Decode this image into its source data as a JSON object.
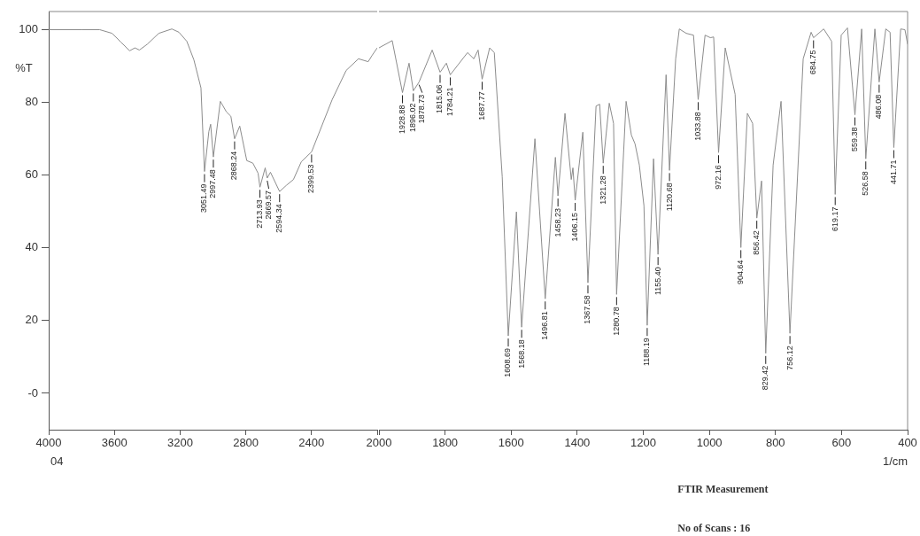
{
  "chart_data": [
    {
      "type": "line",
      "ylabel": "%T",
      "x": [
        4000,
        3800,
        3689,
        3614,
        3561,
        3507,
        3475,
        3448,
        3400,
        3330,
        3250,
        3207,
        3159,
        3116,
        3073,
        3051.49,
        3025,
        3014,
        2997.48,
        2955,
        2918,
        2891,
        2868.24,
        2837,
        2794,
        2757,
        2725,
        2713.93,
        2682,
        2669.57,
        2650,
        2594.34,
        2553,
        2510,
        2462,
        2399.53,
        2274,
        2189,
        2114,
        2055,
        2030,
        2000
      ],
      "series": [
        {
          "color": "#8c8c8c",
          "values": [
            100,
            100,
            100,
            99,
            96.6,
            94.2,
            95,
            94.4,
            96,
            99,
            100.2,
            99.3,
            96.8,
            91.7,
            84,
            61,
            72,
            74,
            65,
            80.3,
            77.4,
            76.2,
            70,
            73.5,
            64,
            63.3,
            60.5,
            56.7,
            62,
            59.2,
            60.8,
            55.5,
            57.2,
            58.8,
            63.7,
            66.4,
            80.8,
            88.8,
            92,
            91.2,
            93,
            95
          ]
        }
      ],
      "xlim": [
        4000,
        2000
      ],
      "xticks": [
        4000,
        3600,
        3200,
        2800,
        2400,
        {
          "value": 2000,
          "label": null
        }
      ],
      "ylim": [
        -10,
        105
      ],
      "yticks": [
        {
          "value": 0,
          "label": "-0"
        },
        20,
        40,
        60,
        80,
        100
      ],
      "annotations": [
        "04",
        {
          "text": "3051.49",
          "x": 3051.49,
          "y": 61
        },
        {
          "text": "2997.48",
          "x": 2997.48,
          "y": 65
        },
        {
          "text": "2868.24",
          "x": 2868.24,
          "y": 70
        },
        {
          "text": "2713.93",
          "x": 2713.93,
          "y": 56.7
        },
        {
          "text": "2669.57",
          "x": 2669.57,
          "y": 59.2
        },
        {
          "text": "2594.34",
          "x": 2594.34,
          "y": 55.5
        },
        {
          "text": "2399.53",
          "x": 2399.53,
          "y": 66.4
        }
      ]
    },
    {
      "type": "line",
      "xlabel": "1/cm",
      "tick_labels": "x",
      "x": [
        2000,
        1960,
        1928.88,
        1909,
        1896.02,
        1878.73,
        1839,
        1815.06,
        1796,
        1784.21,
        1732,
        1713,
        1700,
        1687.77,
        1665,
        1651,
        1627,
        1608.69,
        1584,
        1568.18,
        1528,
        1496.81,
        1466,
        1458.23,
        1437,
        1418,
        1413,
        1406.15,
        1383,
        1367.58,
        1343,
        1332,
        1321.28,
        1303,
        1290,
        1280.78,
        1252,
        1236,
        1225,
        1212,
        1198,
        1188.19,
        1169,
        1155.4,
        1131,
        1120.68,
        1102,
        1091,
        1070,
        1048,
        1033.88,
        1013,
        997,
        987,
        972.16,
        952,
        922,
        904.64,
        885,
        869,
        856.42,
        842,
        829.42,
        807,
        783,
        756.12,
        716,
        692,
        684.75,
        654,
        630,
        619.17,
        601,
        582,
        559.38,
        539,
        526.58,
        499,
        486.08,
        466,
        453,
        441.71,
        421,
        408,
        400
      ],
      "series": [
        {
          "color": "#8c8c8c",
          "values": [
            95,
            97,
            82.7,
            90.8,
            83.2,
            85.6,
            94.4,
            88.3,
            90.8,
            87.6,
            93.7,
            92,
            94.4,
            86.4,
            95,
            93.7,
            59.6,
            15.8,
            49.9,
            18.2,
            70,
            26,
            64.9,
            54.3,
            77,
            58.8,
            62,
            53.1,
            71.8,
            30.4,
            79,
            79.5,
            63.3,
            79.8,
            74.2,
            27.2,
            80.3,
            71,
            68.6,
            62.8,
            51.6,
            18.7,
            64.5,
            38.2,
            87.6,
            61.3,
            92,
            100.2,
            99,
            98.5,
            80.8,
            98.5,
            97.8,
            98,
            66.2,
            95,
            82.2,
            40.1,
            77,
            74.2,
            48.2,
            58.4,
            11,
            62.8,
            80.3,
            16.5,
            92,
            99.3,
            97.8,
            100.2,
            96.8,
            54.7,
            98.5,
            100.5,
            76.6,
            100.2,
            64.5,
            100.2,
            85.6,
            100.2,
            99.3,
            67.6,
            100.2,
            100,
            96
          ]
        }
      ],
      "xlim": [
        2000,
        400
      ],
      "xticks": [
        2000,
        1800,
        1600,
        1400,
        1200,
        1000,
        800,
        600,
        400
      ],
      "ylim": [
        -10,
        105
      ],
      "annotations": [
        "FTIR Measurement",
        "No of Scans : 16",
        {
          "text": "1928.88",
          "x": 1928.88,
          "y": 82.7
        },
        {
          "text": "1896.02",
          "x": 1896.02,
          "y": 83.2
        },
        {
          "text": "1878.73",
          "x": 1878.73,
          "y": 85.6
        },
        {
          "text": "1815.06",
          "x": 1815.06,
          "y": 88.3
        },
        {
          "text": "1784.21",
          "x": 1784.21,
          "y": 87.6
        },
        {
          "text": "1687.77",
          "x": 1687.77,
          "y": 86.4
        },
        {
          "text": "1608.69",
          "x": 1608.69,
          "y": 15.8
        },
        {
          "text": "1568.18",
          "x": 1568.18,
          "y": 18.2
        },
        {
          "text": "1496.81",
          "x": 1496.81,
          "y": 26
        },
        {
          "text": "1458.23",
          "x": 1458.23,
          "y": 54.3
        },
        {
          "text": "1406.15",
          "x": 1406.15,
          "y": 53.1
        },
        {
          "text": "1367.58",
          "x": 1367.58,
          "y": 30.4
        },
        {
          "text": "1321.28",
          "x": 1321.28,
          "y": 63.3
        },
        {
          "text": "1280.78",
          "x": 1280.78,
          "y": 27.2
        },
        {
          "text": "1188.19",
          "x": 1188.19,
          "y": 18.7
        },
        {
          "text": "1155.40",
          "x": 1155.4,
          "y": 38.2
        },
        {
          "text": "1120.68",
          "x": 1120.68,
          "y": 61.3
        },
        {
          "text": "1033.88",
          "x": 1033.88,
          "y": 80.8
        },
        {
          "text": "972.16",
          "x": 972.16,
          "y": 66.2
        },
        {
          "text": "904.64",
          "x": 904.64,
          "y": 40.1
        },
        {
          "text": "856.42",
          "x": 856.42,
          "y": 48.2
        },
        {
          "text": "829.42",
          "x": 829.42,
          "y": 11
        },
        {
          "text": "756.12",
          "x": 756.12,
          "y": 16.5
        },
        {
          "text": "684.75",
          "x": 684.75,
          "y": 97.8
        },
        {
          "text": "619.17",
          "x": 619.17,
          "y": 54.7
        },
        {
          "text": "559.38",
          "x": 559.38,
          "y": 76.6
        },
        {
          "text": "526.58",
          "x": 526.58,
          "y": 64.5
        },
        {
          "text": "486.08",
          "x": 486.08,
          "y": 85.6
        },
        {
          "text": "441.71",
          "x": 441.71,
          "y": 67.6
        }
      ]
    }
  ]
}
